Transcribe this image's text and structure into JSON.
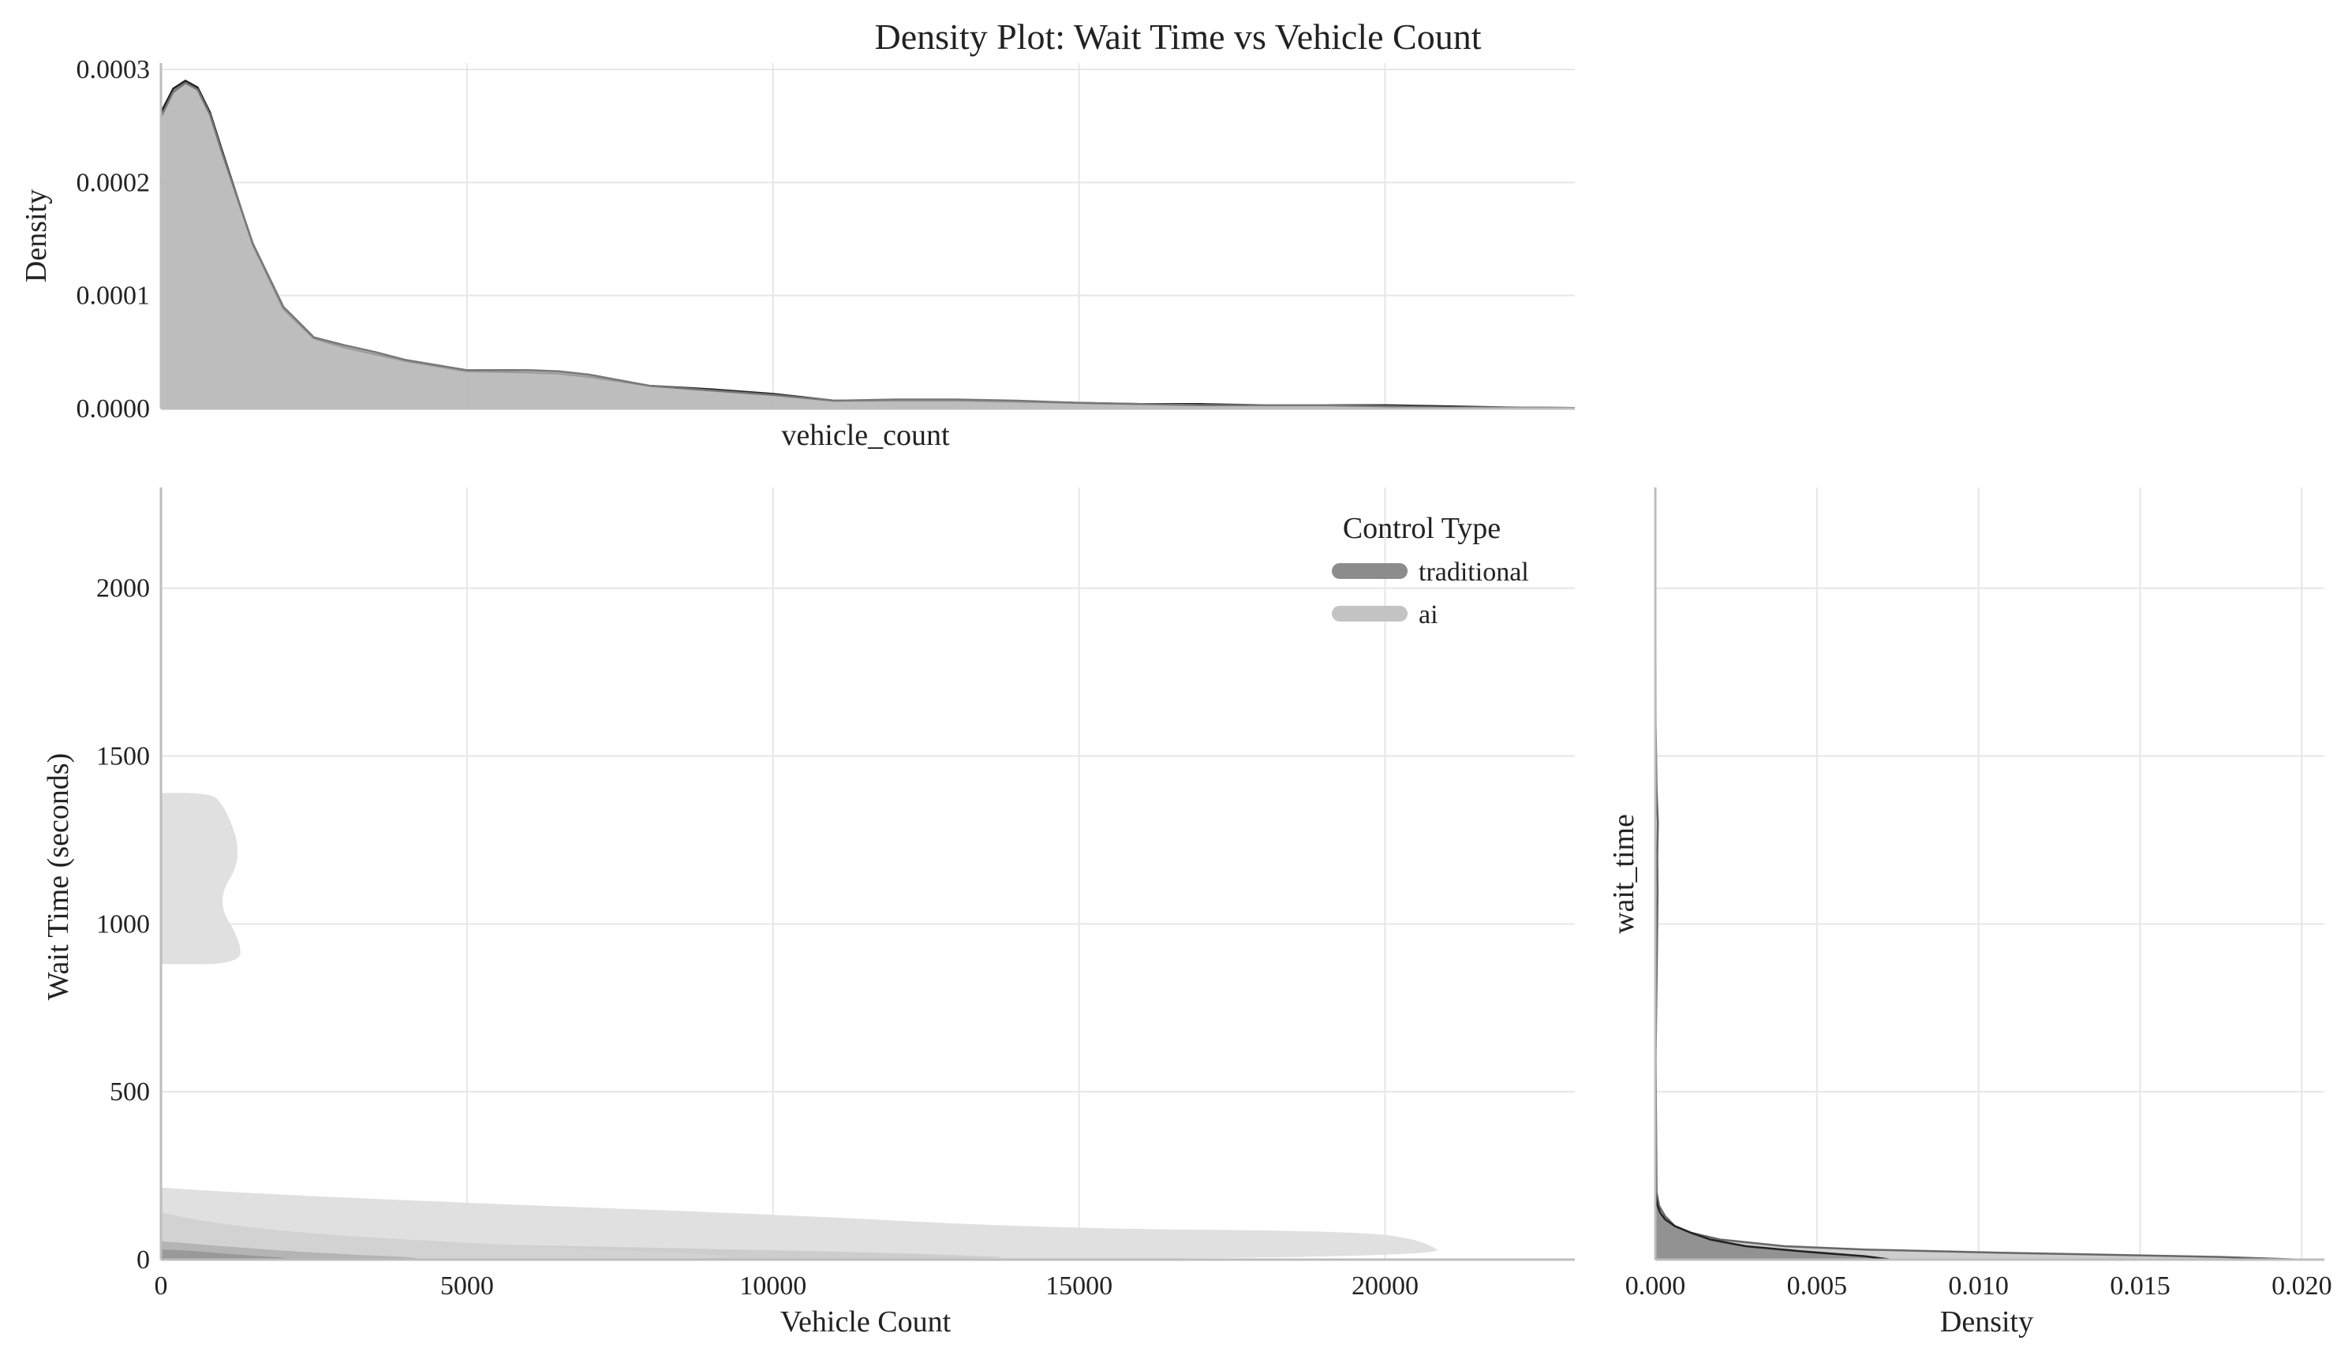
{
  "title": "Density Plot: Wait Time vs Vehicle Count",
  "colors": {
    "traditional": "#8c8c8c",
    "ai": "#c4c4c4",
    "ai_region": "#e0e0e0",
    "outline": "#222222"
  },
  "chart_data": [
    {
      "type": "area",
      "panel": "top-marginal",
      "xlabel": "vehicle_count",
      "ylabel": "Density",
      "xlim": [
        0,
        23100
      ],
      "ylim": [
        0,
        0.0003
      ],
      "yticks": [
        "0.0000",
        "0.0001",
        "0.0002",
        "0.0003"
      ],
      "grid": true,
      "series": [
        {
          "name": "traditional",
          "x": [
            0,
            200,
            400,
            600,
            800,
            1000,
            1500,
            2000,
            2500,
            3000,
            3500,
            4000,
            5000,
            6000,
            6500,
            7000,
            8000,
            9000,
            10000,
            11000,
            12000,
            13000,
            14000,
            15000,
            16000,
            17000,
            18000,
            19000,
            20000,
            21000,
            22000,
            23100
          ],
          "y": [
            0.000262,
            0.000283,
            0.00029,
            0.000284,
            0.000262,
            0.000228,
            0.000145,
            8.8e-05,
            6.2e-05,
            5.4e-05,
            4.8e-05,
            4.2e-05,
            3.3e-05,
            3.2e-05,
            3.1e-05,
            2.8e-05,
            2e-05,
            1.7e-05,
            1.3e-05,
            7e-06,
            7e-06,
            7e-06,
            6e-06,
            5e-06,
            4e-06,
            4e-06,
            3e-06,
            3e-06,
            3e-06,
            2e-06,
            1e-06,
            5e-07
          ]
        },
        {
          "name": "ai",
          "x": [
            0,
            200,
            400,
            600,
            800,
            1000,
            1500,
            2000,
            2500,
            3000,
            3500,
            4000,
            5000,
            6000,
            6500,
            7000,
            8000,
            9000,
            10000,
            11000,
            12000,
            13000,
            14000,
            15000,
            16000,
            17000,
            18000,
            19000,
            20000,
            21000,
            22000,
            23100
          ],
          "y": [
            0.000258,
            0.00028,
            0.000288,
            0.000282,
            0.00026,
            0.000226,
            0.000146,
            9e-05,
            6.3e-05,
            5.6e-05,
            5e-05,
            4.3e-05,
            3.4e-05,
            3.4e-05,
            3.3e-05,
            3e-05,
            2e-05,
            1.6e-05,
            1.2e-05,
            7e-06,
            8e-06,
            8e-06,
            7e-06,
            5e-06,
            4e-06,
            3e-06,
            3e-06,
            3e-06,
            2e-06,
            1e-06,
            1e-06,
            5e-07
          ]
        }
      ]
    },
    {
      "type": "contour",
      "panel": "joint",
      "xlabel": "Vehicle Count",
      "ylabel": "Wait Time (seconds)",
      "xlim": [
        0,
        23100
      ],
      "ylim": [
        0,
        2300
      ],
      "xticks": [
        0,
        5000,
        10000,
        15000,
        20000
      ],
      "yticks": [
        0,
        500,
        1000,
        1500,
        2000
      ],
      "grid": true,
      "legend": {
        "title": "Control Type",
        "placement": "top-right",
        "entries": [
          "traditional",
          "ai"
        ]
      },
      "regions": [
        {
          "series": "ai",
          "level": "outer",
          "points": [
            [
              0,
              880
            ],
            [
              1300,
              880
            ],
            [
              1300,
              950
            ],
            [
              900,
              1070
            ],
            [
              1350,
              1200
            ],
            [
              1000,
              1370
            ],
            [
              700,
              1390
            ],
            [
              0,
              1390
            ]
          ]
        },
        {
          "series": "ai",
          "level": "outer",
          "points": [
            [
              0,
              0
            ],
            [
              21100,
              0
            ],
            [
              20600,
              60
            ],
            [
              19500,
              85
            ],
            [
              14500,
              93
            ],
            [
              10000,
              135
            ],
            [
              4800,
              170
            ],
            [
              1200,
              200
            ],
            [
              0,
              215
            ]
          ]
        },
        {
          "series": "traditional",
          "level": "outer",
          "points": [
            [
              0,
              0
            ],
            [
              15000,
              0
            ],
            [
              12000,
              20
            ],
            [
              9500,
              30
            ],
            [
              4000,
              50
            ],
            [
              1000,
              70
            ],
            [
              0,
              90
            ]
          ]
        },
        {
          "series": "ai",
          "level": "inner",
          "points": [
            [
              0,
              0
            ],
            [
              11000,
              0
            ],
            [
              6000,
              40
            ],
            [
              2500,
              75
            ],
            [
              800,
              110
            ],
            [
              0,
              140
            ]
          ]
        },
        {
          "series": "traditional",
          "level": "inner",
          "points": [
            [
              0,
              0
            ],
            [
              5000,
              0
            ],
            [
              2500,
              20
            ],
            [
              1000,
              40
            ],
            [
              0,
              55
            ]
          ]
        },
        {
          "series": "traditional",
          "level": "core",
          "points": [
            [
              0,
              0
            ],
            [
              2500,
              0
            ],
            [
              1200,
              15
            ],
            [
              400,
              28
            ],
            [
              0,
              30
            ]
          ]
        }
      ]
    },
    {
      "type": "area",
      "panel": "right-marginal",
      "orientation": "horizontal",
      "xlabel": "Density",
      "ylabel": "wait_time",
      "xlim": [
        0,
        0.0207
      ],
      "ylim": [
        0,
        2300
      ],
      "xticks": [
        "0.000",
        "0.005",
        "0.010",
        "0.015",
        "0.020"
      ],
      "grid": true,
      "series": [
        {
          "name": "traditional",
          "wait_time": [
            0,
            10,
            25,
            40,
            60,
            80,
            100,
            120,
            140,
            160,
            180,
            200,
            2300
          ],
          "density": [
            0.0073,
            0.0065,
            0.0045,
            0.0028,
            0.0017,
            0.0011,
            0.0006,
            0.0003,
            0.00015,
            7e-05,
            3e-05,
            1e-05,
            0
          ]
        },
        {
          "name": "ai",
          "wait_time": [
            0,
            8,
            20,
            30,
            40,
            60,
            80,
            100,
            130,
            160,
            200,
            600,
            900,
            1100,
            1200,
            1300,
            1400,
            1600,
            2300
          ],
          "density": [
            0.02,
            0.0175,
            0.011,
            0.0065,
            0.004,
            0.002,
            0.0011,
            0.0006,
            0.0003,
            0.00012,
            4e-05,
            1e-05,
            5e-05,
            7e-05,
            6e-05,
            8e-05,
            4e-05,
            1e-05,
            0
          ]
        }
      ]
    }
  ]
}
